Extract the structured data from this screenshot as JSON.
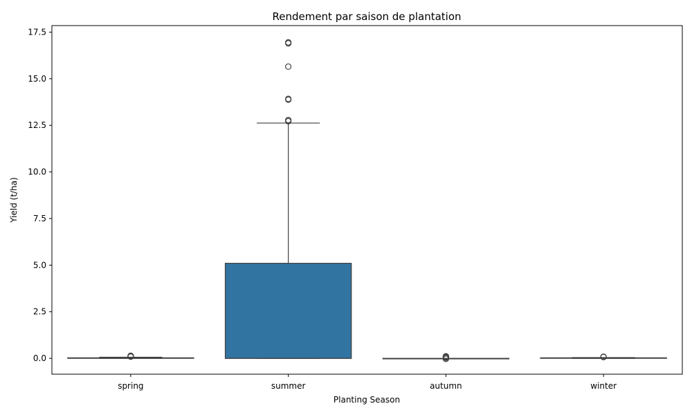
{
  "chart_data": {
    "type": "box",
    "title": "Rendement par saison de plantation",
    "xlabel": "Planting Season",
    "ylabel": "Yield (t/ha)",
    "ylim": [
      -0.85,
      17.85
    ],
    "yticks": [
      0.0,
      2.5,
      5.0,
      7.5,
      10.0,
      12.5,
      15.0,
      17.5
    ],
    "ytick_labels": [
      "0.0",
      "2.5",
      "5.0",
      "7.5",
      "10.0",
      "12.5",
      "15.0",
      "17.5"
    ],
    "categories": [
      "spring",
      "summer",
      "autumn",
      "winter"
    ],
    "box_color": "#3274a1",
    "line_color": "#3f3f3f",
    "boxes": [
      {
        "category": "spring",
        "whisker_low": 0.0,
        "q1": 0.0,
        "median": 0.01,
        "q3": 0.03,
        "whisker_high": 0.06,
        "outliers": [
          0.09,
          0.11,
          0.13,
          0.14
        ]
      },
      {
        "category": "summer",
        "whisker_low": 0.0,
        "q1": 0.0,
        "median": 0.0,
        "q3": 5.1,
        "whisker_high": 12.62,
        "outliers": [
          12.72,
          12.78,
          13.88,
          13.92,
          15.65,
          16.9,
          16.95
        ]
      },
      {
        "category": "autumn",
        "whisker_low": 0.0,
        "q1": 0.0,
        "median": 0.0,
        "q3": 0.0,
        "whisker_high": 0.0,
        "outliers": [
          0.03,
          0.06,
          0.09,
          0.11,
          -0.03
        ]
      },
      {
        "category": "winter",
        "whisker_low": 0.0,
        "q1": 0.0,
        "median": 0.02,
        "q3": 0.03,
        "whisker_high": 0.04,
        "outliers": [
          0.07,
          0.09
        ]
      }
    ]
  }
}
